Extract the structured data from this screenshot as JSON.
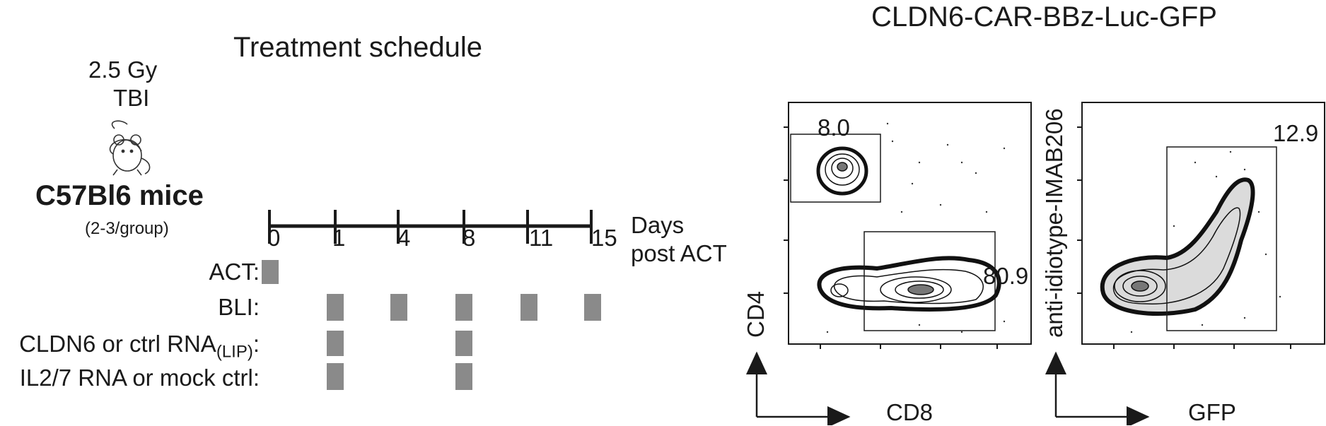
{
  "schedule": {
    "title": "Treatment schedule",
    "dose": "2.5 Gy",
    "dose_type": "TBI",
    "mouse_strain": "C57Bl6 mice",
    "group_size": "(2-3/group)",
    "mouse_icon": "mouse-icon",
    "timeline": {
      "days": [
        "0",
        "1",
        "4",
        "8",
        "11",
        "15"
      ],
      "unit_line1": "Days",
      "unit_line2": "post ACT"
    },
    "rows": [
      {
        "label": "ACT:",
        "days": [
          "0"
        ]
      },
      {
        "label": "BLI:",
        "days": [
          "1",
          "4",
          "8",
          "11",
          "15"
        ]
      },
      {
        "label": "CLDN6 or ctrl RNA",
        "subscript": "(LIP)",
        "suffix": ":",
        "days": [
          "1",
          "8"
        ]
      },
      {
        "label": "IL2/7 RNA or mock ctrl:",
        "days": [
          "1",
          "8"
        ]
      }
    ]
  },
  "flow": {
    "title": "CLDN6-CAR-BBz-Luc-GFP",
    "plot1": {
      "y_label": "CD4",
      "x_label": "CD8",
      "gate_cd4": "8.0",
      "gate_cd8": "80.9"
    },
    "plot2": {
      "y_label": "anti-idiotype-IMAB206",
      "x_label": "GFP",
      "gate_car": "12.9"
    }
  }
}
